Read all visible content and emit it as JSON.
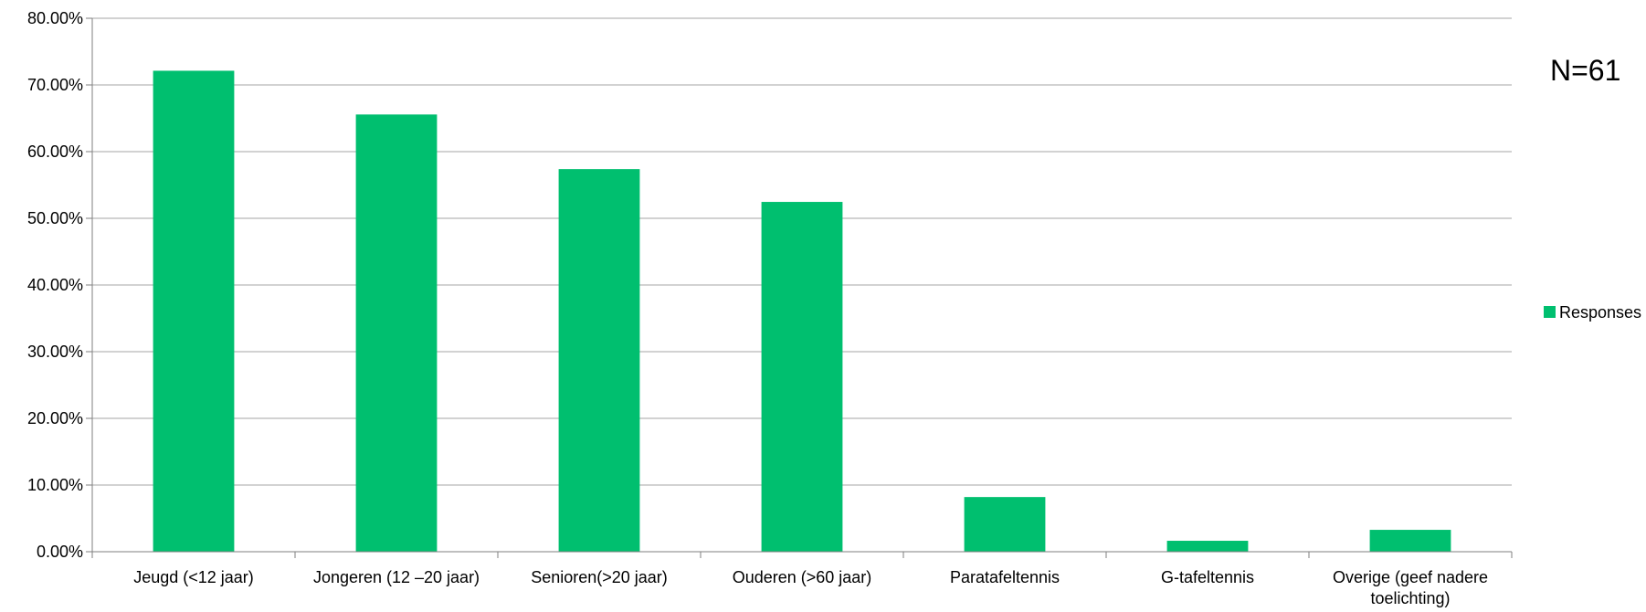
{
  "chart_data": {
    "type": "bar",
    "categories": [
      "Jeugd (<12 jaar)",
      "Jongeren (12 –20 jaar)",
      "Senioren(>20 jaar)",
      "Ouderen (>60 jaar)",
      "Paratafeltennis",
      "G-tafeltennis",
      "Overige (geef nadere toelichting)"
    ],
    "series": [
      {
        "name": "Responses",
        "values": [
          72.13,
          65.57,
          57.38,
          52.46,
          8.2,
          1.64,
          3.28
        ]
      }
    ],
    "ylim": [
      0,
      80
    ],
    "ytick_step": 10,
    "ytick_labels": [
      "0.00%",
      "10.00%",
      "20.00%",
      "30.00%",
      "40.00%",
      "50.00%",
      "60.00%",
      "70.00%",
      "80.00%"
    ],
    "grid": true,
    "legend_position": "right",
    "annotation": "N=61",
    "bar_color": "#00bf6f",
    "grid_color": "#a6a6a6"
  }
}
